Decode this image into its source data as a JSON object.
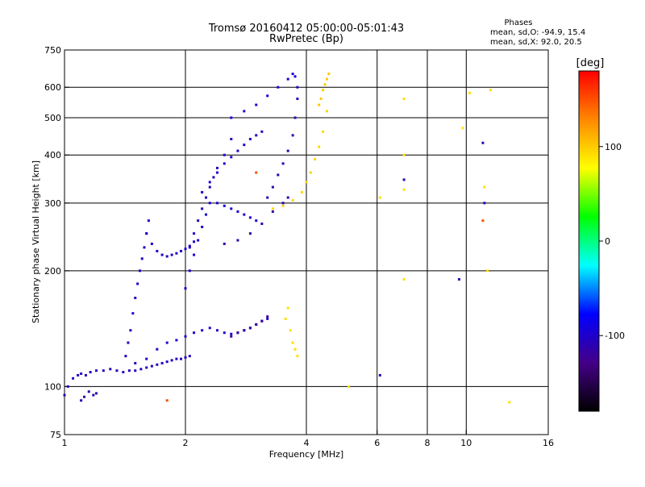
{
  "chart_data": {
    "type": "scatter",
    "title": "Tromsø 20160412 05:00:00-05:01:43",
    "subtitle": "RwPretec (Bp)",
    "xlabel": "Frequency [MHz]",
    "ylabel": "Stationary phase Virtual Height [km]",
    "x_scale": "log",
    "y_scale": "log",
    "xlim": [
      1,
      16
    ],
    "ylim": [
      75,
      750
    ],
    "x_ticks": [
      1,
      2,
      4,
      6,
      8,
      10,
      16
    ],
    "y_ticks": [
      75,
      100,
      200,
      300,
      400,
      500,
      600,
      750
    ],
    "x_grid": [
      2,
      4,
      6,
      8,
      10
    ],
    "y_grid": [
      100,
      200,
      300,
      400,
      500,
      600
    ],
    "phase_info": {
      "heading": "Phases",
      "line_o": "mean, sd,O: -94.9, 15.4",
      "line_x": "mean, sd,X:  92.0, 20.5"
    },
    "colorbar": {
      "label": "[deg]",
      "range": [
        -180,
        180
      ],
      "ticks": [
        100,
        0,
        -100
      ],
      "colors": [
        "#ff0000",
        "#ff8800",
        "#ffff00",
        "#00ff00",
        "#00ffff",
        "#0000ff",
        "#440088",
        "#000000"
      ]
    },
    "series": [
      {
        "phase": -105,
        "x": [
          1.0,
          1.02,
          1.05,
          1.08,
          1.1,
          1.13,
          1.16,
          1.2,
          1.25,
          1.3,
          1.35,
          1.4,
          1.45,
          1.5,
          1.55,
          1.6,
          1.65,
          1.7,
          1.75,
          1.8,
          1.85,
          1.9,
          1.95,
          2.0,
          2.05
        ],
        "y": [
          95,
          100,
          105,
          107,
          108,
          107,
          109,
          110,
          110,
          111,
          110,
          109,
          110,
          110,
          111,
          112,
          113,
          114,
          115,
          116,
          117,
          118,
          118,
          119,
          120
        ]
      },
      {
        "phase": -110,
        "x": [
          1.1,
          1.12,
          1.15,
          1.18,
          1.2
        ],
        "y": [
          92,
          94,
          97,
          95,
          96
        ]
      },
      {
        "phase": -100,
        "x": [
          1.42,
          1.44,
          1.46,
          1.48,
          1.5,
          1.52,
          1.54,
          1.56,
          1.58,
          1.6,
          1.62
        ],
        "y": [
          120,
          130,
          140,
          155,
          170,
          185,
          200,
          215,
          230,
          250,
          270
        ]
      },
      {
        "phase": -100,
        "x": [
          1.6,
          1.65,
          1.7,
          1.75,
          1.8,
          1.85,
          1.9,
          1.95,
          2.0,
          2.05,
          2.1
        ],
        "y": [
          250,
          235,
          225,
          220,
          218,
          220,
          222,
          225,
          228,
          232,
          238
        ]
      },
      {
        "phase": -105,
        "x": [
          2.05,
          2.1,
          2.15,
          2.2,
          2.25,
          2.3,
          2.35,
          2.4,
          2.5,
          2.6
        ],
        "y": [
          230,
          250,
          270,
          290,
          310,
          330,
          350,
          370,
          400,
          440
        ]
      },
      {
        "phase": -100,
        "x": [
          1.5,
          1.6,
          1.7,
          1.8,
          1.9,
          2.0,
          2.1,
          2.2,
          2.3,
          2.4,
          2.5,
          2.6,
          2.7,
          2.8,
          2.9,
          3.0,
          3.1,
          3.2
        ],
        "y": [
          115,
          118,
          125,
          130,
          132,
          135,
          138,
          140,
          142,
          140,
          138,
          137,
          138,
          140,
          142,
          145,
          148,
          150
        ]
      },
      {
        "phase": -115,
        "x": [
          2.5,
          2.7,
          2.9,
          3.1,
          3.3,
          3.5,
          3.6
        ],
        "y": [
          235,
          240,
          250,
          265,
          285,
          300,
          310
        ]
      },
      {
        "phase": -95,
        "x": [
          2.6,
          2.8,
          3.0,
          3.2,
          3.4,
          3.6,
          3.7,
          3.75,
          3.8
        ],
        "y": [
          500,
          520,
          540,
          570,
          600,
          630,
          650,
          640,
          600
        ]
      },
      {
        "phase": -110,
        "x": [
          3.2,
          3.3,
          3.4,
          3.5,
          3.6,
          3.7,
          3.75,
          3.8
        ],
        "y": [
          310,
          330,
          355,
          380,
          410,
          450,
          500,
          560
        ]
      },
      {
        "phase": -95,
        "x": [
          2.0,
          2.05,
          2.1,
          2.15,
          2.2,
          2.25,
          2.3,
          2.4,
          2.5,
          2.6,
          2.7,
          2.8,
          2.9,
          3.0
        ],
        "y": [
          180,
          200,
          220,
          240,
          260,
          280,
          300,
          300,
          295,
          290,
          285,
          280,
          275,
          270
        ]
      },
      {
        "phase": -100,
        "x": [
          2.2,
          2.3,
          2.4,
          2.5,
          2.6,
          2.7,
          2.8,
          2.9,
          3.0,
          3.1
        ],
        "y": [
          320,
          340,
          360,
          380,
          395,
          410,
          425,
          440,
          450,
          460
        ]
      },
      {
        "phase": -120,
        "x": [
          2.6,
          2.7,
          2.8,
          2.9,
          3.0,
          3.1,
          3.2
        ],
        "y": [
          135,
          138,
          140,
          142,
          145,
          148,
          152
        ]
      },
      {
        "phase": 95,
        "x": [
          3.3,
          3.5,
          3.7,
          3.9,
          4.0,
          4.1,
          4.2,
          4.3,
          4.4,
          4.5
        ],
        "y": [
          290,
          295,
          305,
          320,
          340,
          360,
          390,
          420,
          460,
          520
        ]
      },
      {
        "phase": 100,
        "x": [
          4.3,
          4.35,
          4.4,
          4.45,
          4.5,
          4.55
        ],
        "y": [
          540,
          560,
          590,
          610,
          630,
          650
        ]
      },
      {
        "phase": 90,
        "x": [
          3.55,
          3.6,
          3.65,
          3.7,
          3.75,
          3.8
        ],
        "y": [
          150,
          160,
          140,
          130,
          125,
          120
        ]
      },
      {
        "phase": 90,
        "x": [
          5.1,
          6.1,
          7.0,
          7.0,
          7.0,
          7.0,
          9.8,
          10.2,
          11.1,
          11.3,
          11.5,
          12.8
        ],
        "y": [
          100,
          310,
          560,
          400,
          325,
          190,
          470,
          580,
          330,
          200,
          590,
          91
        ]
      },
      {
        "phase": -110,
        "x": [
          6.1,
          7.0,
          9.6,
          11.0,
          11.1
        ],
        "y": [
          107,
          345,
          190,
          430,
          300
        ]
      },
      {
        "phase": 150,
        "x": [
          1.8,
          3.0,
          11.0
        ],
        "y": [
          92,
          360,
          270
        ]
      }
    ]
  }
}
